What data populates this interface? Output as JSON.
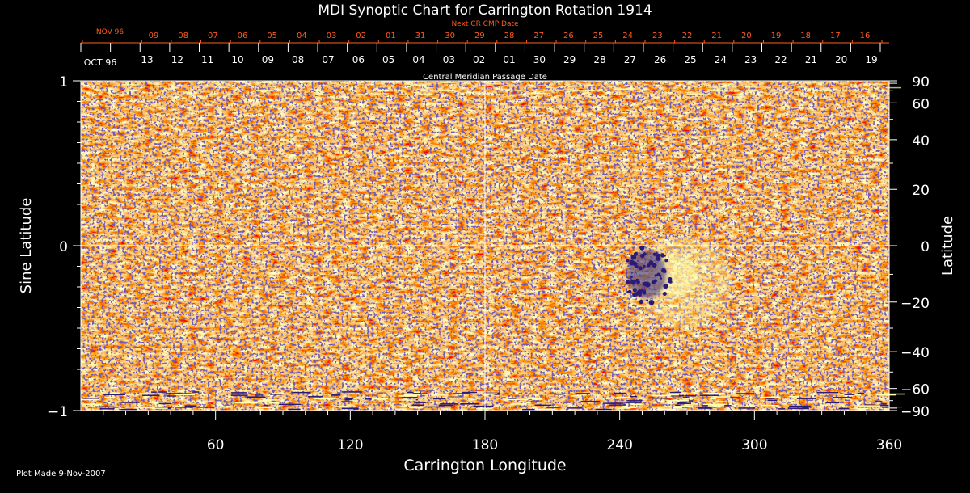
{
  "chart_data": {
    "type": "heatmap",
    "title": "MDI Synoptic Chart for Carrington Rotation 1914",
    "xlabel": "Carrington Longitude",
    "ylabel_left": "Sine Latitude",
    "ylabel_right": "Latitude",
    "xlim": [
      0,
      360
    ],
    "ylim": [
      -1,
      1
    ],
    "x_ticks": [
      60,
      120,
      180,
      240,
      300,
      360
    ],
    "x_tick_labels": [
      "60",
      "120",
      "180",
      "240",
      "300",
      "360"
    ],
    "y_left_ticks": [
      1,
      0,
      -1
    ],
    "y_left_tick_labels": [
      "1",
      "0",
      "−1"
    ],
    "y_right_ticks": [
      90,
      60,
      40,
      20,
      0,
      -20,
      -40,
      -60,
      -90
    ],
    "y_right_tick_labels": [
      "90",
      "60",
      "40",
      "20",
      "0",
      "−20",
      "−40",
      "−60",
      "−90"
    ],
    "top_axis_label": "Central Meridian Passage Date",
    "top_axis_start": "OCT 96",
    "top_axis_dates": [
      "13",
      "12",
      "11",
      "10",
      "09",
      "08",
      "07",
      "06",
      "05",
      "04",
      "03",
      "02",
      "01",
      "30",
      "29",
      "28",
      "27",
      "26",
      "25",
      "24",
      "23",
      "22",
      "21",
      "20",
      "19"
    ],
    "next_axis_label": "Next CR CMP Date",
    "next_axis_start": "NOV 96",
    "next_axis_dates": [
      "09",
      "08",
      "07",
      "06",
      "05",
      "04",
      "03",
      "02",
      "01",
      "31",
      "30",
      "29",
      "28",
      "27",
      "26",
      "25",
      "24",
      "23",
      "22",
      "21",
      "20",
      "19",
      "18",
      "17",
      "16"
    ],
    "reference_lines": {
      "longitude": 180,
      "sine_latitude": 0
    },
    "features": [
      {
        "type": "active_region",
        "longitude": 252,
        "latitude": -10
      }
    ],
    "colors": {
      "background_field": "#ff5a10",
      "negative_polarity": "#2a1a7a",
      "positive_polarity": "#ffffb0",
      "grid_lines": "#ffffff",
      "next_axis": "#ff5a1f"
    }
  },
  "footer": {
    "plot_made": "Plot Made  9-Nov-2007"
  }
}
